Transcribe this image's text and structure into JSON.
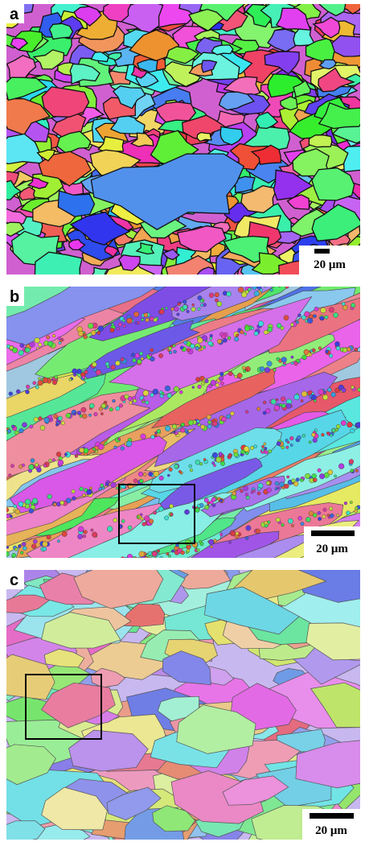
{
  "panels": [
    {
      "label": "a",
      "scale_bar": "20 μm"
    },
    {
      "label": "b",
      "scale_bar": "20 μm"
    },
    {
      "label": "c",
      "scale_bar": "20 μm"
    }
  ]
}
